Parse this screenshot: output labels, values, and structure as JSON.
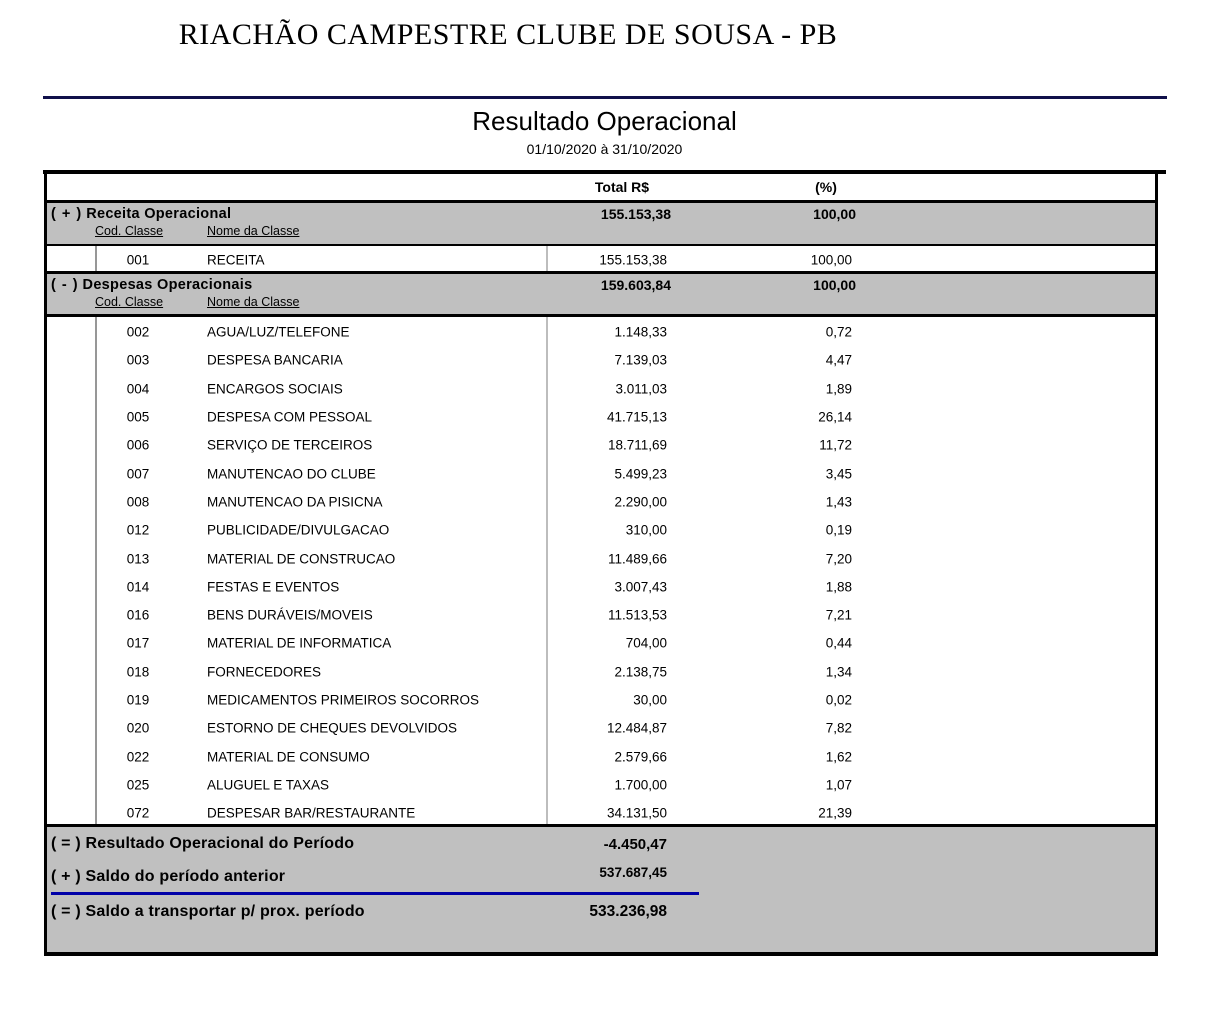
{
  "header": {
    "company": "RIACHÃO CAMPESTRE CLUBE DE SOUSA - PB",
    "title": "Resultado Operacional",
    "period": "01/10/2020 à 31/10/2020"
  },
  "table": {
    "columns": {
      "total": "Total R$",
      "percent": "(%)"
    },
    "subcolumns": {
      "code": "Cod. Classe",
      "name": "Nome da Classe"
    },
    "sections": [
      {
        "sign": "( + )",
        "label": "Receita Operacional",
        "total": "155.153,38",
        "percent": "100,00",
        "rows": [
          {
            "code": "001",
            "name": "RECEITA",
            "total": "155.153,38",
            "percent": "100,00"
          }
        ]
      },
      {
        "sign": "( - )",
        "label": "Despesas Operacionais",
        "total": "159.603,84",
        "percent": "100,00",
        "rows": [
          {
            "code": "002",
            "name": "AGUA/LUZ/TELEFONE",
            "total": "1.148,33",
            "percent": "0,72"
          },
          {
            "code": "003",
            "name": "DESPESA BANCARIA",
            "total": "7.139,03",
            "percent": "4,47"
          },
          {
            "code": "004",
            "name": "ENCARGOS SOCIAIS",
            "total": "3.011,03",
            "percent": "1,89"
          },
          {
            "code": "005",
            "name": "DESPESA COM PESSOAL",
            "total": "41.715,13",
            "percent": "26,14"
          },
          {
            "code": "006",
            "name": "SERVIÇO DE TERCEIROS",
            "total": "18.711,69",
            "percent": "11,72"
          },
          {
            "code": "007",
            "name": "MANUTENCAO DO CLUBE",
            "total": "5.499,23",
            "percent": "3,45"
          },
          {
            "code": "008",
            "name": "MANUTENCAO DA PISICNA",
            "total": "2.290,00",
            "percent": "1,43"
          },
          {
            "code": "012",
            "name": "PUBLICIDADE/DIVULGACAO",
            "total": "310,00",
            "percent": "0,19"
          },
          {
            "code": "013",
            "name": "MATERIAL DE CONSTRUCAO",
            "total": "11.489,66",
            "percent": "7,20"
          },
          {
            "code": "014",
            "name": "FESTAS E EVENTOS",
            "total": "3.007,43",
            "percent": "1,88"
          },
          {
            "code": "016",
            "name": "BENS DURÁVEIS/MOVEIS",
            "total": "11.513,53",
            "percent": "7,21"
          },
          {
            "code": "017",
            "name": "MATERIAL DE INFORMATICA",
            "total": "704,00",
            "percent": "0,44"
          },
          {
            "code": "018",
            "name": "FORNECEDORES",
            "total": "2.138,75",
            "percent": "1,34"
          },
          {
            "code": "019",
            "name": "MEDICAMENTOS PRIMEIROS SOCORROS",
            "total": "30,00",
            "percent": "0,02"
          },
          {
            "code": "020",
            "name": "ESTORNO DE CHEQUES DEVOLVIDOS",
            "total": "12.484,87",
            "percent": "7,82"
          },
          {
            "code": "022",
            "name": "MATERIAL DE CONSUMO",
            "total": "2.579,66",
            "percent": "1,62"
          },
          {
            "code": "025",
            "name": "ALUGUEL E TAXAS",
            "total": "1.700,00",
            "percent": "1,07"
          },
          {
            "code": "072",
            "name": "DESPESAR BAR/RESTAURANTE",
            "total": "34.131,50",
            "percent": "21,39"
          }
        ]
      }
    ],
    "summary": [
      {
        "sign": "( = )",
        "label": "Resultado Operacional do Período",
        "value": "-4.450,47"
      },
      {
        "sign": "( + )",
        "label": "Saldo do período anterior",
        "value": "537.687,45"
      },
      {
        "sign": "( = )",
        "label": "Saldo a transportar p/ prox. período",
        "value": "533.236,98"
      }
    ]
  },
  "colors": {
    "band_gray": "#c0c0c0",
    "header_rule_navy": "#10104a",
    "summary_rule_blue": "#0000a8"
  }
}
